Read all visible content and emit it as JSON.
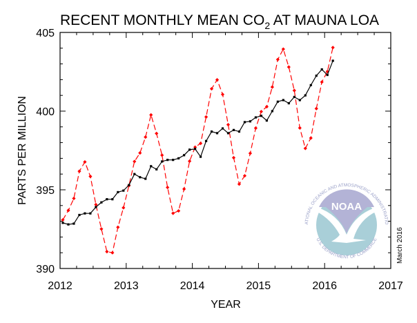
{
  "chart_data": {
    "type": "line",
    "title": "RECENT MONTHLY MEAN CO",
    "title_subscript": "2",
    "title_suffix": " AT MAUNA LOA",
    "xlabel": "YEAR",
    "ylabel": "PARTS PER MILLION",
    "xlim": [
      2012,
      2017
    ],
    "ylim": [
      390,
      405
    ],
    "xticks": [
      2012,
      2013,
      2014,
      2015,
      2016,
      2017
    ],
    "yticks": [
      390,
      395,
      400,
      405
    ],
    "grid": false,
    "start_month": "2012-01",
    "series": [
      {
        "color": "#ff0000",
        "style": "dashed",
        "marker": "diamond",
        "values": [
          393.09,
          393.69,
          394.45,
          396.18,
          396.77,
          395.85,
          394.06,
          392.51,
          391.07,
          391.0,
          392.62,
          393.86,
          395.27,
          396.8,
          397.34,
          398.35,
          399.76,
          398.58,
          397.2,
          395.15,
          393.51,
          393.66,
          395.05,
          396.82,
          397.71,
          397.95,
          399.63,
          401.42,
          401.99,
          401.06,
          399.14,
          397.04,
          395.36,
          395.89,
          397.32,
          398.92,
          399.97,
          400.28,
          401.53,
          403.28,
          403.94,
          402.8,
          401.31,
          398.93,
          397.63,
          398.29,
          400.16,
          401.85,
          402.52,
          404.04
        ]
      },
      {
        "color": "#000000",
        "style": "solid",
        "marker": "square",
        "values": [
          392.9,
          392.8,
          392.85,
          393.4,
          393.5,
          393.5,
          393.9,
          394.2,
          394.4,
          394.4,
          394.85,
          394.95,
          395.3,
          396.0,
          395.8,
          395.7,
          396.5,
          396.3,
          396.8,
          396.9,
          396.9,
          397.0,
          397.2,
          397.55,
          397.6,
          397.1,
          398.1,
          398.7,
          398.6,
          398.9,
          398.6,
          398.8,
          398.7,
          399.3,
          399.35,
          399.6,
          399.7,
          399.4,
          400.0,
          400.6,
          400.7,
          400.5,
          400.9,
          400.7,
          401.0,
          401.65,
          402.25,
          402.65,
          402.3,
          403.2
        ]
      }
    ]
  },
  "logo": {
    "name": "NOAA",
    "ring_text": "NATIONAL OCEANIC AND ATMOSPHERIC ADMINISTRATION",
    "bottom_text": "U.S. DEPARTMENT OF COMMERCE",
    "colors": {
      "top": "#b3b3d6",
      "bottom": "#a9cfd8",
      "ring_text": "#9aa0c8"
    }
  },
  "date_note": "March 2016"
}
